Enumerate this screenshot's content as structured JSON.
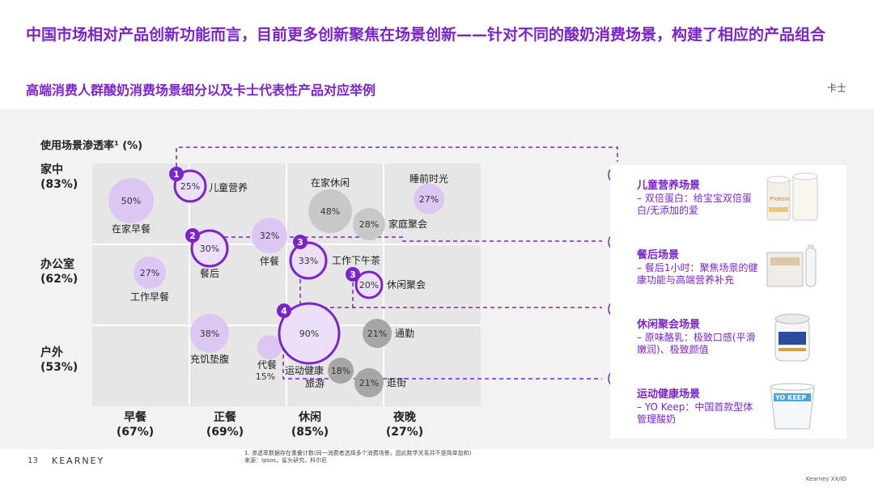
{
  "header": {
    "title": "中国市场相对产品创新功能而言，目前更多创新聚焦在场景创新——针对不同的酸奶消费场景，构建了相应的产品组合",
    "subtitle": "高端消费人群酸奶消费场景细分以及卡士代表性产品对应举例",
    "brand": "卡士"
  },
  "chart_data": {
    "type": "scatter",
    "ylabel": "使用场景渗透率¹ (%)",
    "y_rows": [
      {
        "name": "家中",
        "pct": "(83%)"
      },
      {
        "name": "办公室",
        "pct": "(62%)"
      },
      {
        "name": "户外",
        "pct": "(53%)"
      }
    ],
    "x_cols": [
      {
        "name": "早餐",
        "pct": "(67%)"
      },
      {
        "name": "正餐",
        "pct": "(69%)"
      },
      {
        "name": "休闲",
        "pct": "(85%)"
      },
      {
        "name": "夜晚",
        "pct": "(27%)"
      }
    ],
    "bubbles": [
      {
        "label": "在家早餐",
        "value": "50%",
        "row": 0,
        "col": 0,
        "kind": "purple"
      },
      {
        "label": "儿童营养",
        "value": "25%",
        "row": 0,
        "col": 1,
        "kind": "highlight",
        "badge": "1"
      },
      {
        "label": "在家休闲",
        "value": "48%",
        "row": 0,
        "col": 2,
        "kind": "gray"
      },
      {
        "label": "家庭聚会",
        "value": "28%",
        "row": 0,
        "col": 2,
        "kind": "gray"
      },
      {
        "label": "睡前时光",
        "value": "27%",
        "row": 0,
        "col": 3,
        "kind": "purple"
      },
      {
        "label": "工作早餐",
        "value": "27%",
        "row": 1,
        "col": 0,
        "kind": "purple"
      },
      {
        "label": "餐后",
        "value": "30%",
        "row": 1,
        "col": 1,
        "kind": "highlight",
        "badge": "2"
      },
      {
        "label": "伴餐",
        "value": "32%",
        "row": 1,
        "col": 1,
        "kind": "purple"
      },
      {
        "label": "工作下午茶",
        "value": "33%",
        "row": 1,
        "col": 2,
        "kind": "highlight",
        "badge": "3"
      },
      {
        "label": "休闲聚会",
        "value": "20%",
        "row": 1,
        "col": 2,
        "kind": "highlight",
        "badge": "3"
      },
      {
        "label": "充饥垫腹",
        "value": "38%",
        "row": 2,
        "col": 1,
        "kind": "purple"
      },
      {
        "label": "代餐",
        "value": "15%",
        "row": 2,
        "col": 1,
        "kind": "purple"
      },
      {
        "label": "运动健康旅游",
        "value": "90%",
        "row": 2,
        "col": 2,
        "kind": "highlight",
        "badge": "4"
      },
      {
        "label": "通勤",
        "value": "21%",
        "row": 2,
        "col": 3,
        "kind": "darkgray"
      },
      {
        "label": "",
        "value": "18%",
        "row": 2,
        "col": 2,
        "kind": "darkgray"
      },
      {
        "label": "逛街",
        "value": "21%",
        "row": 2,
        "col": 3,
        "kind": "darkgray"
      }
    ]
  },
  "scenarios": [
    {
      "num": "1",
      "title": "儿童营养场景",
      "desc": "– 双倍蛋白：给宝宝双倍蛋白/无添加的爱"
    },
    {
      "num": "2",
      "title": "餐后场景",
      "desc": "– 餐后1小时：聚焦场景的健康功能与高端营养补充"
    },
    {
      "num": "3",
      "title": "休闲聚会场景",
      "desc": "– 原味酪乳：极致口感(平滑嫩润)、极致颜值"
    },
    {
      "num": "4",
      "title": "运动健康场景",
      "desc": "– YO Keep：中国首款型体管理酸奶"
    }
  ],
  "products": {
    "p1_text": "Protein",
    "p4_text": "YO KEEP"
  },
  "footer": {
    "note1": "1. 渗透率数据存在重叠计数(同一消费者选择多个消费场景，因此数学关系并不是简单加和)",
    "note2": "来源：Ipsos，鲨头研究，科尔尼",
    "page": "13",
    "logo": "KEARNEY",
    "right": "Kearney XX/ID"
  },
  "colors": {
    "accent": "#7b24cc",
    "bubble_purple": "#dcc7f2",
    "bubble_light": "#ebe0f7",
    "bubble_gray": "#c8c8c8",
    "bubble_darkgray": "#a6a6a6"
  }
}
